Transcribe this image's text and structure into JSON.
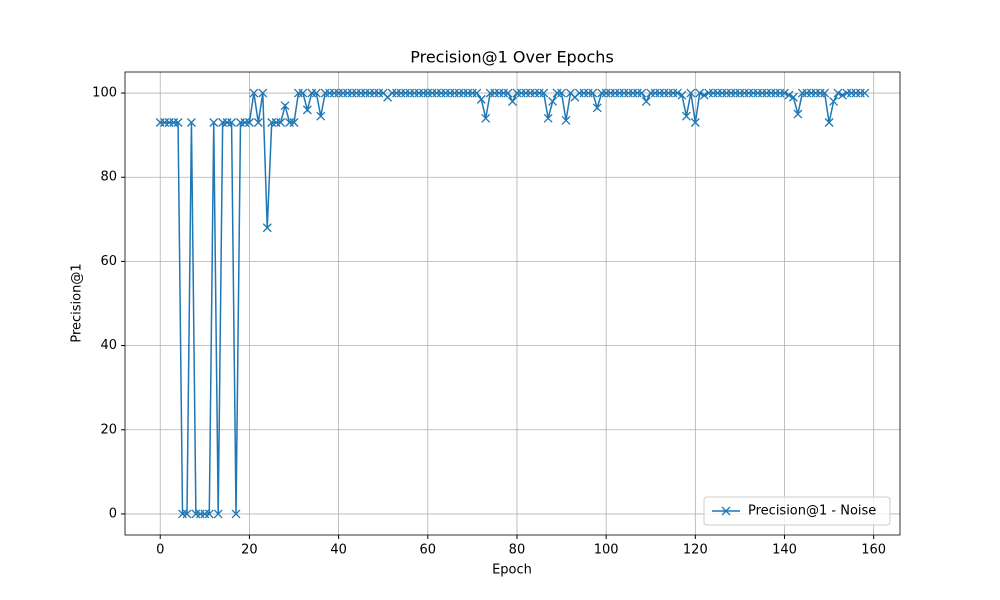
{
  "chart_data": {
    "type": "line",
    "title": "Precision@1 Over Epochs",
    "xlabel": "Epoch",
    "ylabel": "Precision@1",
    "x": [
      0,
      1,
      2,
      3,
      4,
      5,
      6,
      7,
      8,
      9,
      10,
      11,
      12,
      13,
      14,
      15,
      16,
      17,
      18,
      19,
      20,
      21,
      22,
      23,
      24,
      25,
      26,
      27,
      28,
      29,
      30,
      31,
      32,
      33,
      34,
      35,
      36,
      37,
      38,
      39,
      40,
      41,
      42,
      43,
      44,
      45,
      46,
      47,
      48,
      49,
      50,
      51,
      52,
      53,
      54,
      55,
      56,
      57,
      58,
      59,
      60,
      61,
      62,
      63,
      64,
      65,
      66,
      67,
      68,
      69,
      70,
      71,
      72,
      73,
      74,
      75,
      76,
      77,
      78,
      79,
      80,
      81,
      82,
      83,
      84,
      85,
      86,
      87,
      88,
      89,
      90,
      91,
      92,
      93,
      94,
      95,
      96,
      97,
      98,
      99,
      100,
      101,
      102,
      103,
      104,
      105,
      106,
      107,
      108,
      109,
      110,
      111,
      112,
      113,
      114,
      115,
      116,
      117,
      118,
      119,
      120,
      121,
      122,
      123,
      124,
      125,
      126,
      127,
      128,
      129,
      130,
      131,
      132,
      133,
      134,
      135,
      136,
      137,
      138,
      139,
      140,
      141,
      142,
      143,
      144,
      145,
      146,
      147,
      148,
      149,
      150,
      151,
      152,
      153,
      154,
      155,
      156,
      157,
      158
    ],
    "series": [
      {
        "name": "Precision@1 - Noise",
        "color": "#1f77b4",
        "marker": "x",
        "values": [
          93,
          93,
          93,
          93,
          93,
          0,
          0,
          93,
          0,
          0,
          0,
          0,
          93,
          0,
          93,
          93,
          93,
          0,
          93,
          93,
          93,
          100,
          93,
          100,
          68,
          93,
          93,
          93,
          97,
          93,
          93,
          100,
          100,
          96,
          100,
          100,
          94.5,
          100,
          100,
          100,
          100,
          100,
          100,
          100,
          100,
          100,
          100,
          100,
          100,
          100,
          100,
          99,
          100,
          100,
          100,
          100,
          100,
          100,
          100,
          100,
          100,
          100,
          100,
          100,
          100,
          100,
          100,
          100,
          100,
          100,
          100,
          100,
          98.5,
          94,
          100,
          100,
          100,
          100,
          100,
          98,
          100,
          100,
          100,
          100,
          100,
          100,
          100,
          94,
          98,
          100,
          100,
          93.5,
          100,
          99,
          100,
          100,
          100,
          100,
          96.5,
          100,
          100,
          100,
          100,
          100,
          100,
          100,
          100,
          100,
          100,
          98,
          100,
          100,
          100,
          100,
          100,
          100,
          100,
          99.5,
          94.5,
          100,
          93,
          100,
          99.5,
          100,
          100,
          100,
          100,
          100,
          100,
          100,
          100,
          100,
          100,
          100,
          100,
          100,
          100,
          100,
          100,
          100,
          100,
          99.5,
          99,
          95,
          100,
          100,
          100,
          100,
          100,
          100,
          93,
          98,
          100,
          99.5,
          100,
          100,
          100,
          100,
          100
        ]
      }
    ],
    "xlim": [
      -7.9,
      165.9
    ],
    "ylim": [
      -5,
      105
    ],
    "xticks": [
      0,
      20,
      40,
      60,
      80,
      100,
      120,
      140,
      160
    ],
    "yticks": [
      0,
      20,
      40,
      60,
      80,
      100
    ],
    "grid": true,
    "legend": "lower right"
  }
}
